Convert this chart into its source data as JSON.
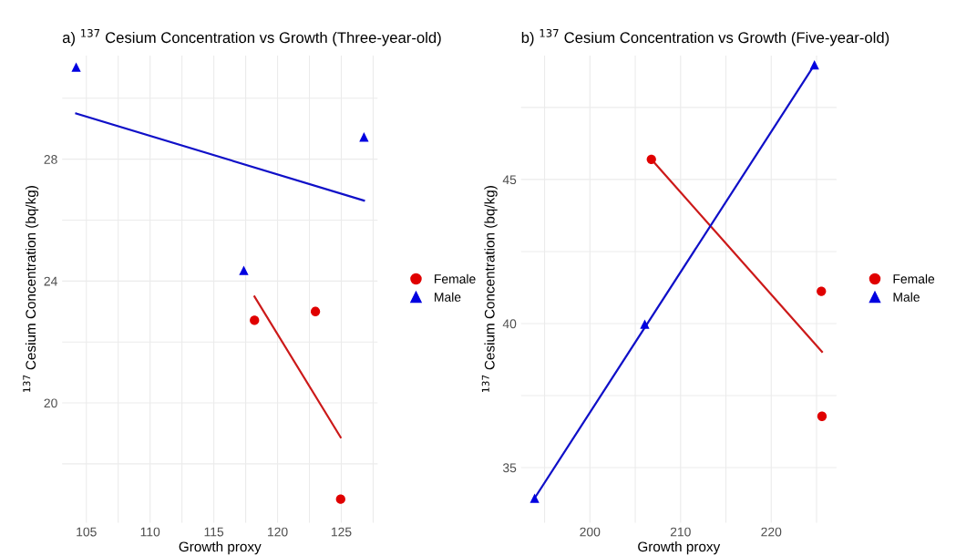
{
  "chart_data": [
    {
      "type": "scatter",
      "title": "a) $^{137}$ Cesium Concentration vs Growth (Three-year-old)",
      "xlabel": "Growth proxy",
      "ylabel": "$^{137}$ Cesium Concentration (bq/kg)",
      "xlim": [
        103.1,
        127.85
      ],
      "ylim": [
        16.07,
        31.4
      ],
      "xticks": [
        105,
        {
          "value": 107.5,
          "label": null
        },
        110,
        {
          "value": 112.5,
          "label": null
        },
        115,
        {
          "value": 117.5,
          "label": null
        },
        120,
        {
          "value": 122.5,
          "label": null
        },
        125,
        {
          "value": 127.5,
          "label": null
        }
      ],
      "yticks": [
        {
          "value": 18,
          "label": null
        },
        20,
        {
          "value": 22,
          "label": null
        },
        24,
        {
          "value": 26,
          "label": null
        },
        28,
        {
          "value": 30,
          "label": null
        }
      ],
      "grid": true,
      "legend": "right",
      "series": [
        {
          "name": "Female",
          "color": "#e00000",
          "marker": "circle",
          "x": [
            118.19,
            122.97,
            124.95
          ],
          "values": [
            22.71,
            23.0,
            16.84
          ]
        },
        {
          "name": "Male",
          "color": "#0000e0",
          "marker": "triangle",
          "x": [
            104.2,
            117.35,
            126.78
          ],
          "values": [
            31.02,
            24.35,
            28.73
          ]
        },
        {
          "type": "line",
          "color": "#cc1a1a",
          "x": [
            118.19,
            124.95
          ],
          "values": [
            23.49,
            18.87
          ]
        },
        {
          "type": "line",
          "color": "#1010c8",
          "x": [
            104.2,
            126.78
          ],
          "values": [
            29.5,
            26.64
          ]
        }
      ]
    },
    {
      "type": "scatter",
      "title": "b) $^{137}$ Cesium Concentration vs Growth (Five-year-old)",
      "xlabel": "Growth proxy",
      "ylabel": "$^{137}$ Cesium Concentration (bq/kg)",
      "xlim": [
        192.4,
        227.2
      ],
      "ylim": [
        33.09,
        49.3
      ],
      "xticks": [
        {
          "value": 195,
          "label": null
        },
        200,
        {
          "value": 205,
          "label": null
        },
        210,
        {
          "value": 215,
          "label": null
        },
        220,
        {
          "value": 225,
          "label": null
        }
      ],
      "yticks": [
        35,
        {
          "value": 37.5,
          "label": null
        },
        40,
        {
          "value": 42.5,
          "label": null
        },
        45,
        {
          "value": 47.5,
          "label": null
        }
      ],
      "grid": true,
      "legend": "right",
      "series": [
        {
          "name": "Female",
          "color": "#e00000",
          "marker": "circle",
          "x": [
            206.78,
            225.53,
            225.6
          ],
          "values": [
            45.7,
            41.12,
            36.78
          ]
        },
        {
          "name": "Male",
          "color": "#0000e0",
          "marker": "triangle",
          "x": [
            193.9,
            206.05,
            224.77
          ],
          "values": [
            33.94,
            39.98,
            48.98
          ]
        },
        {
          "type": "line",
          "color": "#cc1a1a",
          "x": [
            206.78,
            225.6
          ],
          "values": [
            45.7,
            39.02
          ]
        },
        {
          "type": "line",
          "color": "#1010c8",
          "x": [
            193.9,
            224.77
          ],
          "values": [
            33.94,
            48.98
          ]
        }
      ]
    }
  ]
}
